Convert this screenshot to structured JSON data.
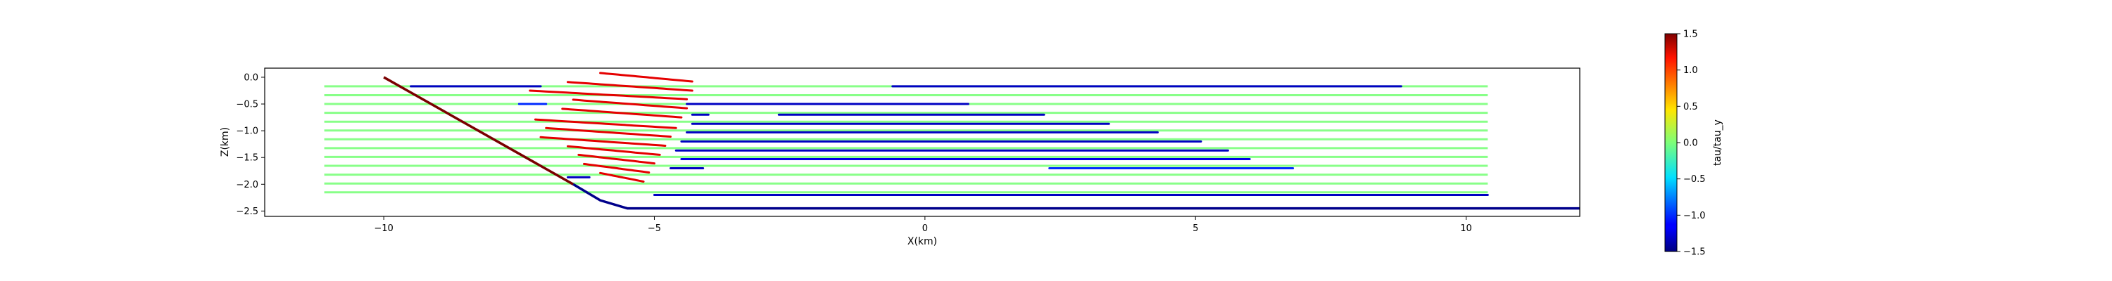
{
  "chart_data": {
    "type": "line",
    "title": "",
    "xlabel": "X(km)",
    "ylabel": "Z(km)",
    "xlim": [
      -12.2,
      12.1
    ],
    "ylim": [
      -2.6,
      0.17
    ],
    "xticks": [
      {
        "v": -10,
        "label": "−10"
      },
      {
        "v": -5,
        "label": "−5"
      },
      {
        "v": 0,
        "label": "0"
      },
      {
        "v": 5,
        "label": "5"
      },
      {
        "v": 10,
        "label": "10"
      }
    ],
    "yticks": [
      {
        "v": 0.0,
        "label": "0.0"
      },
      {
        "v": -0.5,
        "label": "−0.5"
      },
      {
        "v": -1.0,
        "label": "−1.0"
      },
      {
        "v": -1.5,
        "label": "−1.5"
      },
      {
        "v": -2.0,
        "label": "−2.0"
      },
      {
        "v": -2.5,
        "label": "−2.5"
      }
    ],
    "grid": false,
    "colorbar": {
      "label": "tau/tau_y",
      "range": [
        -1.5,
        1.5
      ],
      "colormap": "jet",
      "ticks": [
        {
          "v": 1.5,
          "label": "1.5"
        },
        {
          "v": 1.0,
          "label": "1.0"
        },
        {
          "v": 0.5,
          "label": "0.5"
        },
        {
          "v": 0.0,
          "label": "0.0"
        },
        {
          "v": -0.5,
          "label": "−0.5"
        },
        {
          "v": -1.0,
          "label": "−1.0"
        },
        {
          "v": -1.5,
          "label": "−1.5"
        }
      ]
    },
    "boundary": {
      "surface_points": [
        [
          -10.0,
          0.0
        ],
        [
          -6.5,
          -2.0
        ],
        [
          -6.0,
          -2.3
        ],
        [
          -5.5,
          -2.45
        ],
        [
          12.1,
          -2.45
        ]
      ],
      "slope_color": "#7a0000",
      "base_color": "#00008b"
    },
    "layers": {
      "x_end": 10.4,
      "z_start": -0.17,
      "z_step": -0.165,
      "count": 13,
      "x_start_top": -11.1,
      "transition_x": [
        -7.5,
        -4.5
      ],
      "transition_drop": 0.35,
      "color": "#88ff88"
    },
    "segments": [
      {
        "z": -0.17,
        "x": [
          -9.5,
          -7.1
        ],
        "v": -1.3
      },
      {
        "z": -0.17,
        "x": [
          -0.6,
          8.8
        ],
        "v": -1.3
      },
      {
        "z": -0.5,
        "x": [
          -4.4,
          0.8
        ],
        "v": -1.3
      },
      {
        "z": -0.5,
        "x": [
          -7.5,
          -7.0
        ],
        "v": -1.0
      },
      {
        "z": -0.7,
        "x": [
          -4.3,
          -4.0
        ],
        "v": -1.3
      },
      {
        "z": -0.7,
        "x": [
          -2.7,
          2.2
        ],
        "v": -1.3
      },
      {
        "z": -0.87,
        "x": [
          -4.3,
          3.4
        ],
        "v": -1.3
      },
      {
        "z": -1.03,
        "x": [
          -4.4,
          4.3
        ],
        "v": -1.3
      },
      {
        "z": -1.2,
        "x": [
          -4.5,
          5.1
        ],
        "v": -1.3
      },
      {
        "z": -1.37,
        "x": [
          -4.6,
          5.6
        ],
        "v": -1.3
      },
      {
        "z": -1.53,
        "x": [
          -4.5,
          6.0
        ],
        "v": -1.2
      },
      {
        "z": -1.7,
        "x": [
          -4.7,
          -4.1
        ],
        "v": -1.3
      },
      {
        "z": -1.7,
        "x": [
          2.3,
          6.8
        ],
        "v": -1.0
      },
      {
        "z": -2.2,
        "x": [
          -5.0,
          10.4
        ],
        "v": -1.3
      },
      {
        "z": -1.87,
        "x": [
          -6.6,
          -6.2
        ],
        "v": -1.3
      }
    ],
    "red_segments": [
      {
        "z": -0.0,
        "x": [
          -6.0,
          -4.3
        ],
        "v": 1.2
      },
      {
        "z": -0.17,
        "x": [
          -6.6,
          -4.3
        ],
        "v": 1.2
      },
      {
        "z": -0.33,
        "x": [
          -7.3,
          -4.4
        ],
        "v": 1.2
      },
      {
        "z": -0.5,
        "x": [
          -6.5,
          -4.4
        ],
        "v": 1.2
      },
      {
        "z": -0.67,
        "x": [
          -6.7,
          -4.5
        ],
        "v": 1.2
      },
      {
        "z": -0.87,
        "x": [
          -7.2,
          -4.6
        ],
        "v": 1.2
      },
      {
        "z": -1.03,
        "x": [
          -7.0,
          -4.7
        ],
        "v": 1.2
      },
      {
        "z": -1.2,
        "x": [
          -7.1,
          -4.8
        ],
        "v": 1.2
      },
      {
        "z": -1.37,
        "x": [
          -6.6,
          -4.9
        ],
        "v": 1.2
      },
      {
        "z": -1.53,
        "x": [
          -6.4,
          -5.0
        ],
        "v": 1.2
      },
      {
        "z": -1.7,
        "x": [
          -6.3,
          -5.1
        ],
        "v": 1.2
      },
      {
        "z": -1.87,
        "x": [
          -6.0,
          -5.2
        ],
        "v": 1.2
      }
    ]
  }
}
